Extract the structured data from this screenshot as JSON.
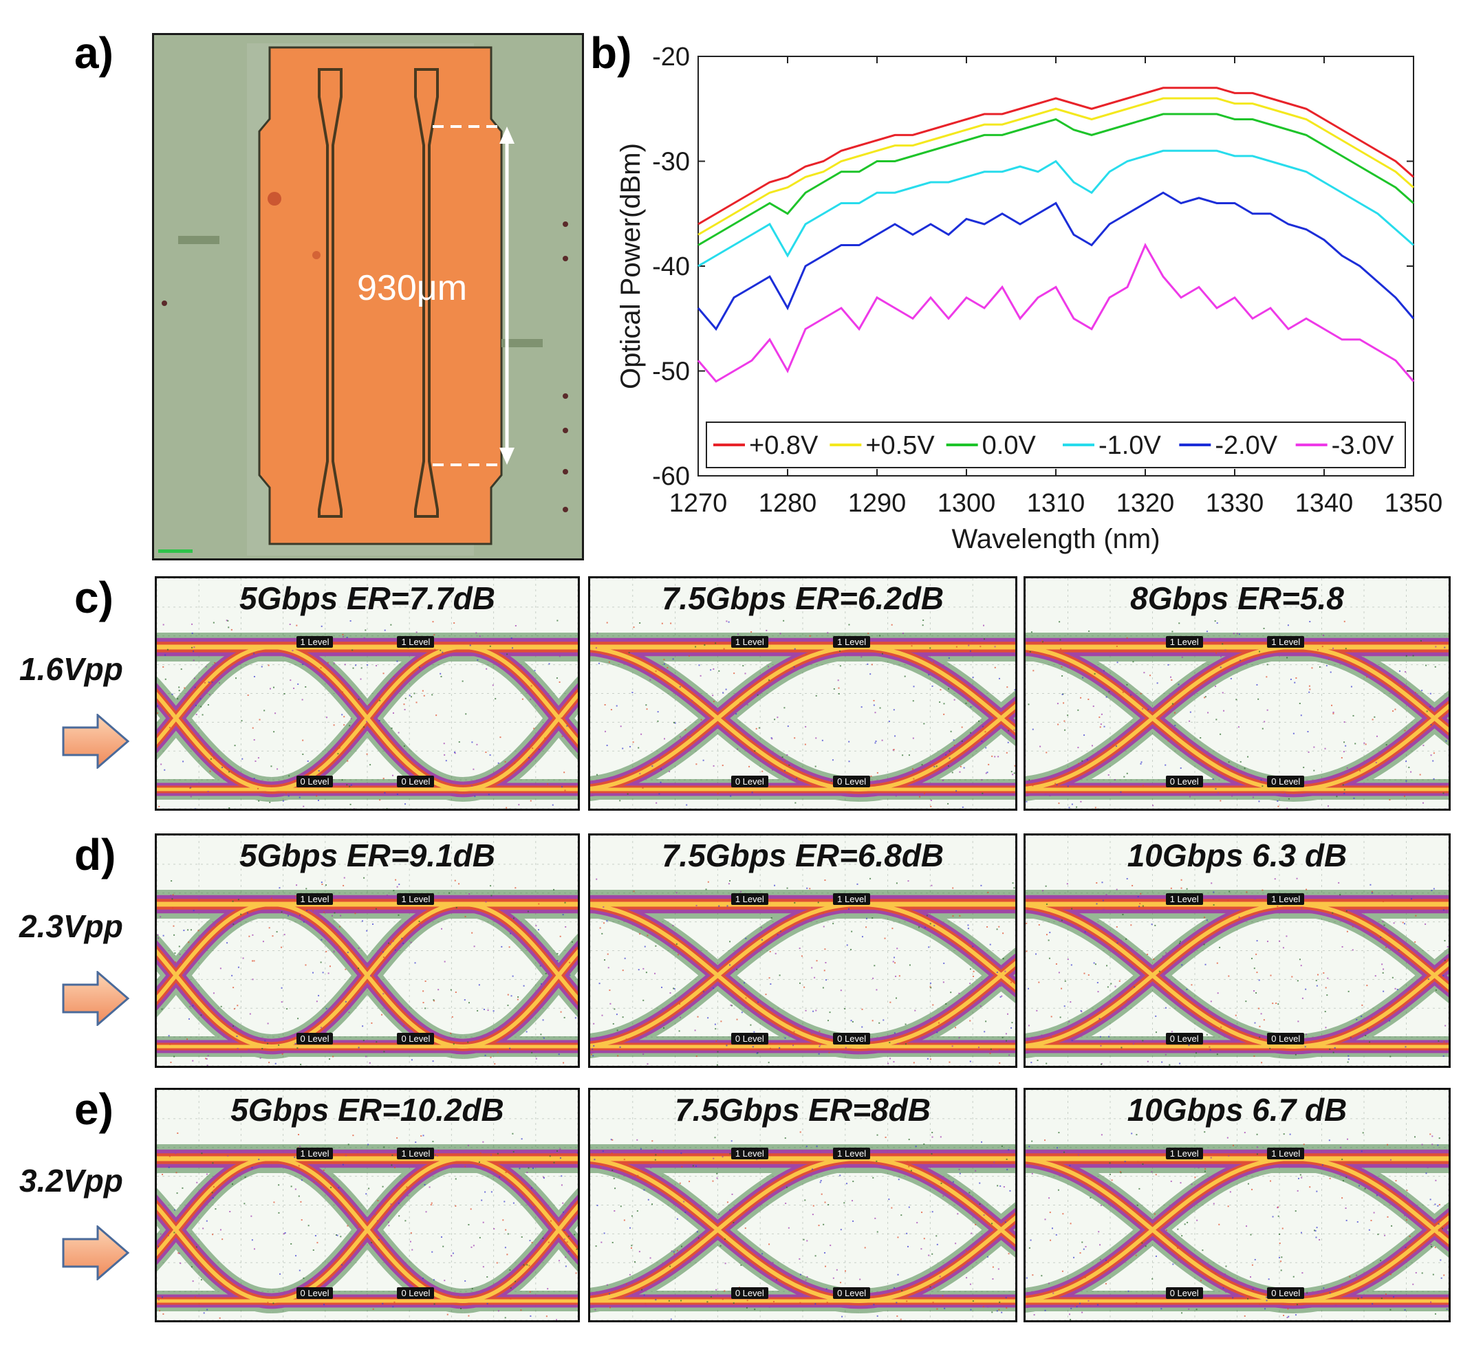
{
  "panels": {
    "a": "a)",
    "b": "b)",
    "c": "c)",
    "d": "d)",
    "e": "e)"
  },
  "micrograph": {
    "scale_label": "930μm",
    "colors": {
      "background": "#9fb291",
      "electrode": "#f08a4a",
      "trace": "#5a4a2a"
    }
  },
  "chart_data": {
    "type": "line",
    "xlabel": "Wavelength (nm)",
    "ylabel": "Optical Power(dBm)",
    "xlim": [
      1270,
      1350
    ],
    "ylim": [
      -60,
      -20
    ],
    "xticks": [
      "1270",
      "1280",
      "1290",
      "1300",
      "1310",
      "1320",
      "1330",
      "1340",
      "1350"
    ],
    "yticks": [
      "-20",
      "-30",
      "-40",
      "-50",
      "-60"
    ],
    "legend_position": "bottom",
    "x": [
      1270,
      1272,
      1274,
      1276,
      1278,
      1280,
      1282,
      1284,
      1286,
      1288,
      1290,
      1292,
      1294,
      1296,
      1298,
      1300,
      1302,
      1304,
      1306,
      1308,
      1310,
      1312,
      1314,
      1316,
      1318,
      1320,
      1322,
      1324,
      1326,
      1328,
      1330,
      1332,
      1334,
      1336,
      1338,
      1340,
      1342,
      1344,
      1346,
      1348,
      1350
    ],
    "series": [
      {
        "name": "+0.8V",
        "color": "#e8232a",
        "values": [
          -36,
          -35,
          -34,
          -33,
          -32,
          -31.5,
          -30.5,
          -30,
          -29,
          -28.5,
          -28,
          -27.5,
          -27.5,
          -27,
          -26.5,
          -26,
          -25.5,
          -25.5,
          -25,
          -24.5,
          -24,
          -24.5,
          -25,
          -24.5,
          -24,
          -23.5,
          -23,
          -23,
          -23,
          -23,
          -23.5,
          -23.5,
          -24,
          -24.5,
          -25,
          -26,
          -27,
          -28,
          -29,
          -30,
          -31.5
        ]
      },
      {
        "name": "+0.5V",
        "color": "#f4e81e",
        "values": [
          -37,
          -36,
          -35,
          -34,
          -33,
          -32.5,
          -31.5,
          -31,
          -30,
          -29.5,
          -29,
          -28.5,
          -28.5,
          -28,
          -27.5,
          -27,
          -26.5,
          -26.5,
          -26,
          -25.5,
          -25,
          -25.5,
          -26,
          -25.5,
          -25,
          -24.5,
          -24,
          -24,
          -24,
          -24,
          -24.5,
          -24.5,
          -25,
          -25.5,
          -26,
          -27,
          -28,
          -29,
          -30,
          -31,
          -32.5
        ]
      },
      {
        "name": "0.0V",
        "color": "#1ec42a",
        "values": [
          -38,
          -37,
          -36,
          -35,
          -34,
          -35,
          -33,
          -32,
          -31,
          -31,
          -30,
          -30,
          -29.5,
          -29,
          -28.5,
          -28,
          -27.5,
          -27.5,
          -27,
          -26.5,
          -26,
          -27,
          -27.5,
          -27,
          -26.5,
          -26,
          -25.5,
          -25.5,
          -25.5,
          -25.5,
          -26,
          -26,
          -26.5,
          -27,
          -27.5,
          -28.5,
          -29.5,
          -30.5,
          -31.5,
          -32.5,
          -34
        ]
      },
      {
        "name": "-1.0V",
        "color": "#28dcec",
        "values": [
          -40,
          -39,
          -38,
          -37,
          -36,
          -39,
          -36,
          -35,
          -34,
          -34,
          -33,
          -33,
          -32.5,
          -32,
          -32,
          -31.5,
          -31,
          -31,
          -30.5,
          -31,
          -30,
          -32,
          -33,
          -31,
          -30,
          -29.5,
          -29,
          -29,
          -29,
          -29,
          -29.5,
          -29.5,
          -30,
          -30.5,
          -31,
          -32,
          -33,
          -34,
          -35,
          -36.5,
          -38
        ]
      },
      {
        "name": "-2.0V",
        "color": "#1c2ed8",
        "values": [
          -44,
          -46,
          -43,
          -42,
          -41,
          -44,
          -40,
          -39,
          -38,
          -38,
          -37,
          -36,
          -37,
          -36,
          -37,
          -35.5,
          -36,
          -35,
          -36,
          -35,
          -34,
          -37,
          -38,
          -36,
          -35,
          -34,
          -33,
          -34,
          -33.5,
          -34,
          -34,
          -35,
          -35,
          -36,
          -36.5,
          -37.5,
          -39,
          -40,
          -41.5,
          -43,
          -45
        ]
      },
      {
        "name": "-3.0V",
        "color": "#ee3ae8",
        "values": [
          -49,
          -51,
          -50,
          -49,
          -47,
          -50,
          -46,
          -45,
          -44,
          -46,
          -43,
          -44,
          -45,
          -43,
          -45,
          -43,
          -44,
          -42,
          -45,
          -43,
          -42,
          -45,
          -46,
          -43,
          -42,
          -38,
          -41,
          -43,
          -42,
          -44,
          -43,
          -45,
          -44,
          -46,
          -45,
          -46,
          -47,
          -47,
          -48,
          -49,
          -51
        ]
      }
    ]
  },
  "eye_rows": [
    {
      "label": "c)",
      "vpp": "1.6Vpp",
      "eyes": [
        {
          "title": "5Gbps ER=7.7dB",
          "level1": "1 Level",
          "level0": "0 Level",
          "openings": 2.2
        },
        {
          "title": "7.5Gbps ER=6.2dB",
          "level1": "1 Level",
          "level0": "0 Level",
          "openings": 1.5
        },
        {
          "title": "8Gbps ER=5.8",
          "level1": "1 Level",
          "level0": "0 Level",
          "openings": 1.5
        }
      ]
    },
    {
      "label": "d)",
      "vpp": "2.3Vpp",
      "eyes": [
        {
          "title": "5Gbps ER=9.1dB",
          "level1": "1 Level",
          "level0": "0 Level",
          "openings": 2.2
        },
        {
          "title": "7.5Gbps ER=6.8dB",
          "level1": "1 Level",
          "level0": "0 Level",
          "openings": 1.5
        },
        {
          "title": "10Gbps 6.3 dB",
          "level1": "1 Level",
          "level0": "0 Level",
          "openings": 1.5
        }
      ]
    },
    {
      "label": "e)",
      "vpp": "3.2Vpp",
      "eyes": [
        {
          "title": "5Gbps ER=10.2dB",
          "level1": "1 Level",
          "level0": "0 Level",
          "openings": 2.2
        },
        {
          "title": "7.5Gbps ER=8dB",
          "level1": "1 Level",
          "level0": "0 Level",
          "openings": 1.5
        },
        {
          "title": "10Gbps 6.7 dB",
          "level1": "1 Level",
          "level0": "0 Level",
          "openings": 1.5
        }
      ]
    }
  ]
}
